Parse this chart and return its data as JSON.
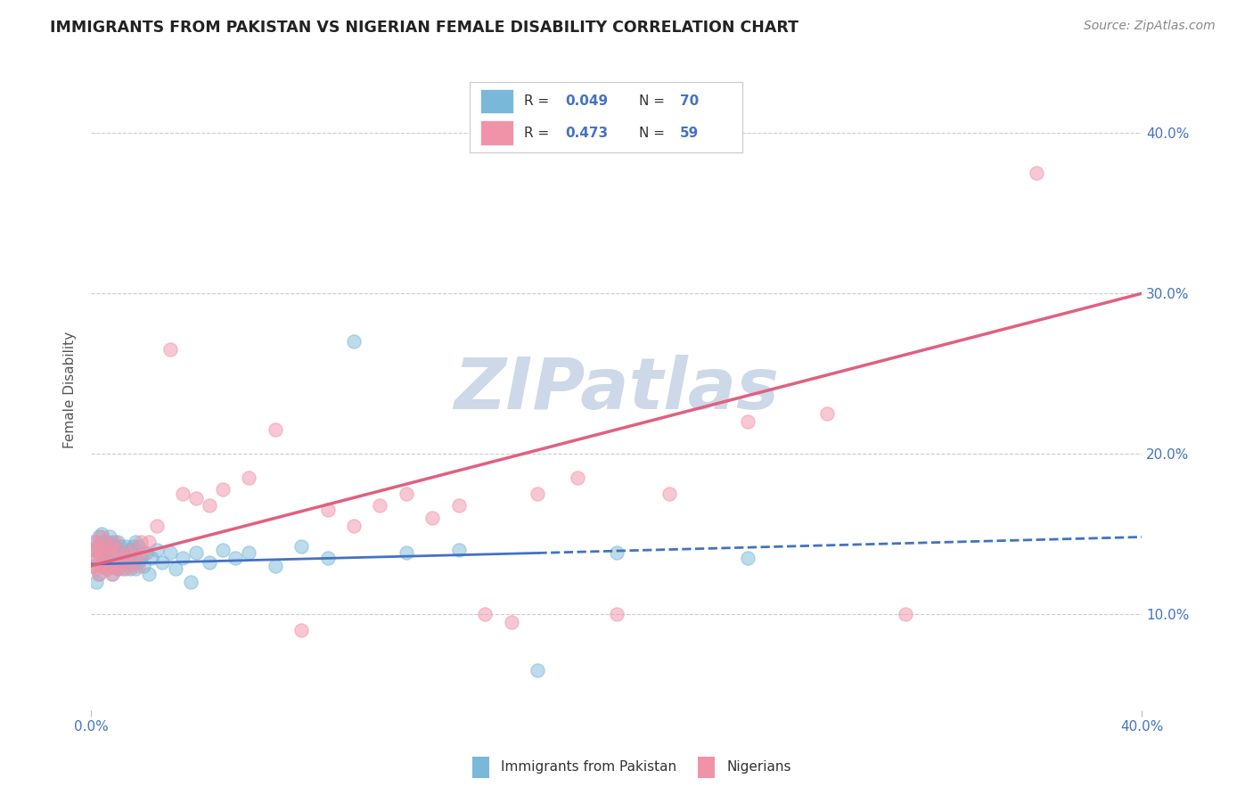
{
  "title": "IMMIGRANTS FROM PAKISTAN VS NIGERIAN FEMALE DISABILITY CORRELATION CHART",
  "source": "Source: ZipAtlas.com",
  "ylabel": "Female Disability",
  "watermark": "ZIPatlas",
  "xlim": [
    0.0,
    0.4
  ],
  "ylim": [
    0.04,
    0.44
  ],
  "yticks": [
    0.1,
    0.2,
    0.3,
    0.4
  ],
  "ytick_labels": [
    "10.0%",
    "20.0%",
    "30.0%",
    "40.0%"
  ],
  "pakistan_color": "#7ab8d9",
  "nigerian_color": "#f093a8",
  "pakistan_scatter_x": [
    0.001,
    0.001,
    0.002,
    0.002,
    0.002,
    0.003,
    0.003,
    0.003,
    0.003,
    0.004,
    0.004,
    0.004,
    0.004,
    0.005,
    0.005,
    0.005,
    0.006,
    0.006,
    0.006,
    0.007,
    0.007,
    0.007,
    0.008,
    0.008,
    0.008,
    0.009,
    0.009,
    0.01,
    0.01,
    0.01,
    0.011,
    0.011,
    0.012,
    0.012,
    0.013,
    0.013,
    0.014,
    0.015,
    0.015,
    0.016,
    0.016,
    0.017,
    0.017,
    0.018,
    0.018,
    0.019,
    0.02,
    0.021,
    0.022,
    0.023,
    0.025,
    0.027,
    0.03,
    0.032,
    0.035,
    0.038,
    0.04,
    0.045,
    0.05,
    0.055,
    0.06,
    0.07,
    0.08,
    0.09,
    0.1,
    0.12,
    0.14,
    0.17,
    0.2,
    0.25
  ],
  "pakistan_scatter_y": [
    0.13,
    0.14,
    0.12,
    0.135,
    0.145,
    0.125,
    0.138,
    0.142,
    0.148,
    0.13,
    0.14,
    0.145,
    0.15,
    0.132,
    0.138,
    0.143,
    0.128,
    0.135,
    0.145,
    0.13,
    0.14,
    0.148,
    0.125,
    0.138,
    0.145,
    0.13,
    0.142,
    0.128,
    0.138,
    0.145,
    0.132,
    0.142,
    0.128,
    0.138,
    0.132,
    0.142,
    0.135,
    0.128,
    0.14,
    0.132,
    0.142,
    0.128,
    0.145,
    0.132,
    0.142,
    0.135,
    0.13,
    0.138,
    0.125,
    0.135,
    0.14,
    0.132,
    0.138,
    0.128,
    0.135,
    0.12,
    0.138,
    0.132,
    0.14,
    0.135,
    0.138,
    0.13,
    0.142,
    0.135,
    0.27,
    0.138,
    0.14,
    0.065,
    0.138,
    0.135
  ],
  "nigerian_scatter_x": [
    0.001,
    0.001,
    0.001,
    0.002,
    0.002,
    0.002,
    0.003,
    0.003,
    0.004,
    0.004,
    0.004,
    0.005,
    0.005,
    0.006,
    0.006,
    0.007,
    0.007,
    0.008,
    0.008,
    0.009,
    0.009,
    0.01,
    0.01,
    0.011,
    0.012,
    0.013,
    0.014,
    0.015,
    0.016,
    0.017,
    0.018,
    0.019,
    0.02,
    0.022,
    0.025,
    0.03,
    0.035,
    0.04,
    0.045,
    0.05,
    0.06,
    0.07,
    0.08,
    0.09,
    0.1,
    0.11,
    0.12,
    0.13,
    0.14,
    0.15,
    0.16,
    0.17,
    0.185,
    0.2,
    0.22,
    0.25,
    0.28,
    0.31,
    0.36
  ],
  "nigerian_scatter_y": [
    0.13,
    0.14,
    0.145,
    0.128,
    0.135,
    0.142,
    0.125,
    0.138,
    0.13,
    0.14,
    0.148,
    0.132,
    0.145,
    0.128,
    0.138,
    0.13,
    0.142,
    0.125,
    0.138,
    0.13,
    0.145,
    0.128,
    0.14,
    0.132,
    0.135,
    0.128,
    0.138,
    0.13,
    0.14,
    0.135,
    0.13,
    0.145,
    0.138,
    0.145,
    0.155,
    0.265,
    0.175,
    0.172,
    0.168,
    0.178,
    0.185,
    0.215,
    0.09,
    0.165,
    0.155,
    0.168,
    0.175,
    0.16,
    0.168,
    0.1,
    0.095,
    0.175,
    0.185,
    0.1,
    0.175,
    0.22,
    0.225,
    0.1,
    0.375
  ],
  "pakistan_trend_x": [
    0.0,
    0.17,
    0.4
  ],
  "pakistan_trend_y": [
    0.131,
    0.138,
    0.148
  ],
  "pakistan_trend_solid_end": 0.17,
  "nigerian_trend_x": [
    0.0,
    0.4
  ],
  "nigerian_trend_y": [
    0.13,
    0.3
  ],
  "background_color": "#ffffff",
  "grid_color": "#cccccc",
  "title_color": "#222222",
  "axis_color": "#4472c4",
  "watermark_color": "#cdd8e8",
  "legend_r1": "R = 0.049",
  "legend_n1": "N = 70",
  "legend_r2": "R = 0.473",
  "legend_n2": "N = 59",
  "legend_bottom_1": "Immigrants from Pakistan",
  "legend_bottom_2": "Nigerians"
}
